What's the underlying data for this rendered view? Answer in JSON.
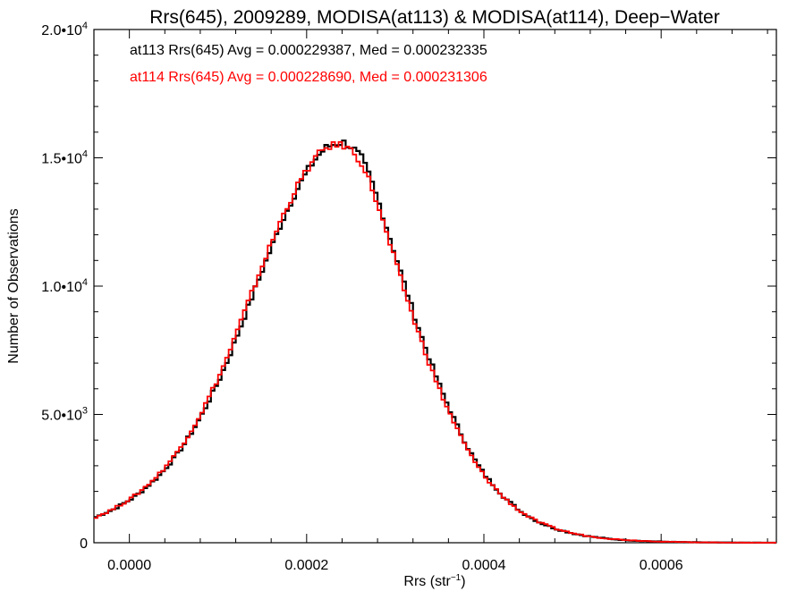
{
  "chart_data": {
    "type": "line",
    "title": "Rrs(645), 2009289, MODISA(at113) & MODISA(at114), Deep−Water",
    "xlabel": "Rrs (str",
    "xlabel_sup": "−1",
    "xlabel_suffix": ")",
    "ylabel": "Number of Observations",
    "xlim": [
      -4e-05,
      0.00073
    ],
    "ylim": [
      0,
      20000
    ],
    "x_ticks": [
      {
        "value": 0.0,
        "label": "0.0000"
      },
      {
        "value": 0.0002,
        "label": "0.0002"
      },
      {
        "value": 0.0004,
        "label": "0.0004"
      },
      {
        "value": 0.0006,
        "label": "0.0006"
      }
    ],
    "y_ticks": [
      {
        "value": 0,
        "mantissa": "0",
        "exp": ""
      },
      {
        "value": 5000,
        "mantissa": "5.0•10",
        "exp": "3"
      },
      {
        "value": 10000,
        "mantissa": "1.0•10",
        "exp": "4"
      },
      {
        "value": 15000,
        "mantissa": "1.5•10",
        "exp": "4"
      },
      {
        "value": 20000,
        "mantissa": "2.0•10",
        "exp": "4"
      }
    ],
    "legend": [
      {
        "text": "at113 Rrs(645) Avg = 0.000229387, Med = 0.000232335",
        "color": "#000000"
      },
      {
        "text": "at114 Rrs(645) Avg = 0.000228690, Med = 0.000231306",
        "color": "#ff0000"
      }
    ],
    "series": [
      {
        "color": "#000000",
        "bin_width": 4e-06,
        "x": [
          -4e-05,
          -3e-05,
          -2e-05,
          -1e-05,
          0.0,
          1e-05,
          2e-05,
          3e-05,
          4e-05,
          5e-05,
          6e-05,
          7e-05,
          8e-05,
          9e-05,
          0.0001,
          0.00011,
          0.00012,
          0.00013,
          0.00014,
          0.00015,
          0.00016,
          0.00017,
          0.00018,
          0.00019,
          0.0002,
          0.00021,
          0.00022,
          0.00023,
          0.00024,
          0.00025,
          0.00026,
          0.00027,
          0.00028,
          0.00029,
          0.0003,
          0.00031,
          0.00032,
          0.00033,
          0.00034,
          0.00035,
          0.00036,
          0.00037,
          0.00038,
          0.00039,
          0.0004,
          0.00042,
          0.00044,
          0.00046,
          0.00048,
          0.0005,
          0.00052,
          0.00054,
          0.00056,
          0.00058,
          0.0006,
          0.00062,
          0.00064,
          0.00066,
          0.00068,
          0.0007,
          0.00073
        ],
        "y": [
          1000,
          1150,
          1300,
          1500,
          1700,
          1950,
          2250,
          2550,
          2950,
          3350,
          3850,
          4400,
          5000,
          5700,
          6400,
          7200,
          8100,
          9000,
          9900,
          10800,
          11650,
          12500,
          13250,
          13950,
          14550,
          15050,
          15400,
          15550,
          15600,
          15400,
          15000,
          14200,
          13200,
          12100,
          11000,
          9900,
          8800,
          7800,
          6850,
          5950,
          5150,
          4400,
          3700,
          3100,
          2600,
          1800,
          1200,
          800,
          530,
          350,
          230,
          150,
          100,
          65,
          40,
          25,
          15,
          10,
          5,
          3,
          1
        ]
      },
      {
        "color": "#ff0000",
        "bin_width": 4e-06,
        "x": [
          -4e-05,
          -3e-05,
          -2e-05,
          -1e-05,
          0.0,
          1e-05,
          2e-05,
          3e-05,
          4e-05,
          5e-05,
          6e-05,
          7e-05,
          8e-05,
          9e-05,
          0.0001,
          0.00011,
          0.00012,
          0.00013,
          0.00014,
          0.00015,
          0.00016,
          0.00017,
          0.00018,
          0.00019,
          0.0002,
          0.00021,
          0.00022,
          0.00023,
          0.00024,
          0.00025,
          0.00026,
          0.00027,
          0.00028,
          0.00029,
          0.0003,
          0.00031,
          0.00032,
          0.00033,
          0.00034,
          0.00035,
          0.00036,
          0.00037,
          0.00038,
          0.00039,
          0.0004,
          0.00042,
          0.00044,
          0.00046,
          0.00048,
          0.0005,
          0.00052,
          0.00054,
          0.00056,
          0.00058,
          0.0006,
          0.00062,
          0.00064,
          0.00066,
          0.00068,
          0.0007,
          0.00073
        ],
        "y": [
          1000,
          1150,
          1320,
          1520,
          1730,
          1990,
          2300,
          2620,
          3020,
          3430,
          3950,
          4500,
          5120,
          5830,
          6550,
          7360,
          8270,
          9180,
          10080,
          10980,
          11820,
          12650,
          13380,
          14050,
          14620,
          15080,
          15400,
          15500,
          15480,
          15250,
          14800,
          14000,
          12950,
          11850,
          10750,
          9650,
          8580,
          7600,
          6650,
          5780,
          5000,
          4270,
          3600,
          3020,
          2540,
          1770,
          1190,
          800,
          535,
          355,
          235,
          155,
          105,
          68,
          42,
          27,
          16,
          10,
          5,
          3,
          1
        ]
      }
    ]
  }
}
